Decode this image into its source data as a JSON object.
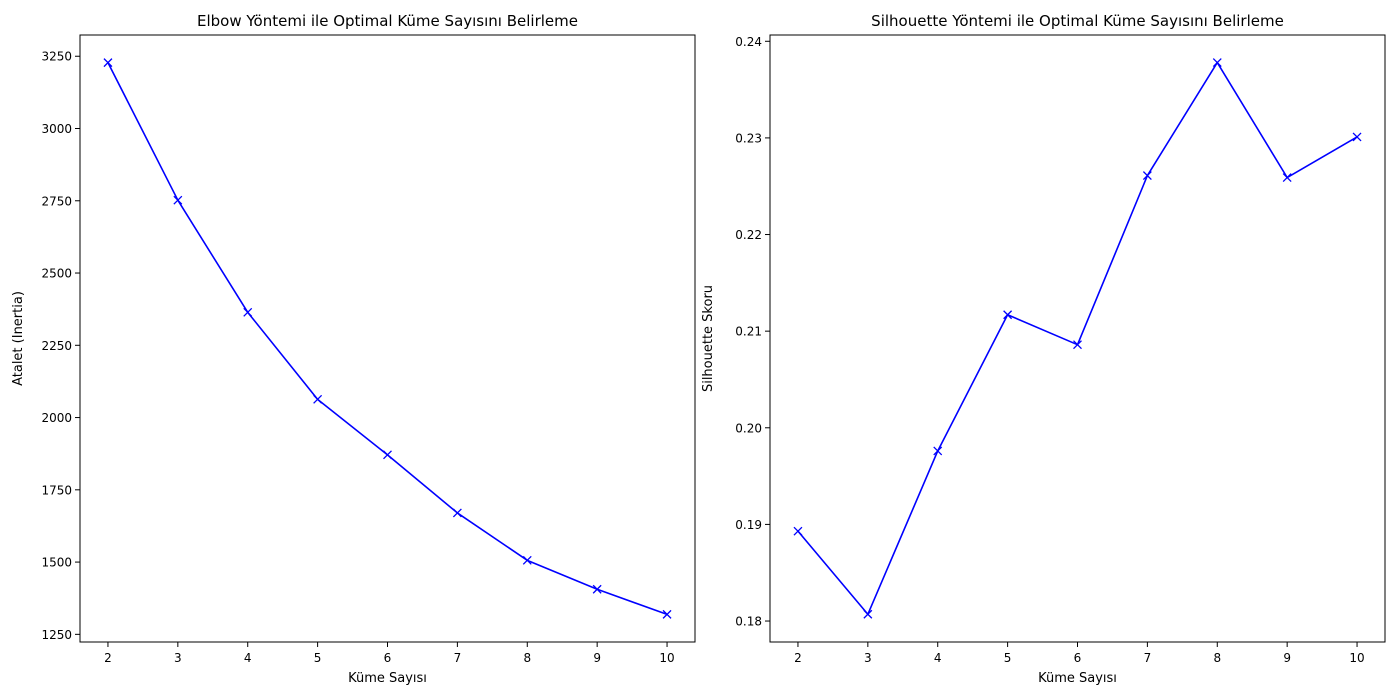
{
  "line_color": "#0000ff",
  "marker": "x",
  "chart_data": [
    {
      "type": "line",
      "title": "Elbow Yöntemi ile Optimal Küme Sayısını Belirleme",
      "xlabel": "Küme Sayısı",
      "ylabel": "Atalet (Inertia)",
      "x": [
        2,
        3,
        4,
        5,
        6,
        7,
        8,
        9,
        10
      ],
      "y": [
        3228,
        2752,
        2364,
        2063,
        1871,
        1670,
        1506,
        1406,
        1319
      ],
      "xticks": [
        2,
        3,
        4,
        5,
        6,
        7,
        8,
        9,
        10
      ],
      "yticks": [
        1250,
        1500,
        1750,
        2000,
        2250,
        2500,
        2750,
        3000,
        3250
      ],
      "ytick_labels": [
        "1250",
        "1500",
        "1750",
        "2000",
        "2250",
        "2500",
        "2750",
        "3000",
        "3250"
      ],
      "xlim": [
        1.6,
        10.4
      ],
      "ylim": [
        1223.5,
        3323.5
      ],
      "grid": false
    },
    {
      "type": "line",
      "title": "Silhouette Yöntemi ile Optimal Küme Sayısını Belirleme",
      "xlabel": "Küme Sayısı",
      "ylabel": "Silhouette Skoru",
      "x": [
        2,
        3,
        4,
        5,
        6,
        7,
        8,
        9,
        10
      ],
      "y": [
        0.1893,
        0.1807,
        0.1976,
        0.2117,
        0.2086,
        0.2261,
        0.2378,
        0.2259,
        0.2301
      ],
      "xticks": [
        2,
        3,
        4,
        5,
        6,
        7,
        8,
        9,
        10
      ],
      "yticks": [
        0.18,
        0.19,
        0.2,
        0.21,
        0.22,
        0.23,
        0.24
      ],
      "ytick_labels": [
        "0.18",
        "0.19",
        "0.20",
        "0.21",
        "0.22",
        "0.23",
        "0.24"
      ],
      "xlim": [
        1.6,
        10.4
      ],
      "ylim": [
        0.17783,
        0.24065
      ],
      "grid": false
    }
  ]
}
